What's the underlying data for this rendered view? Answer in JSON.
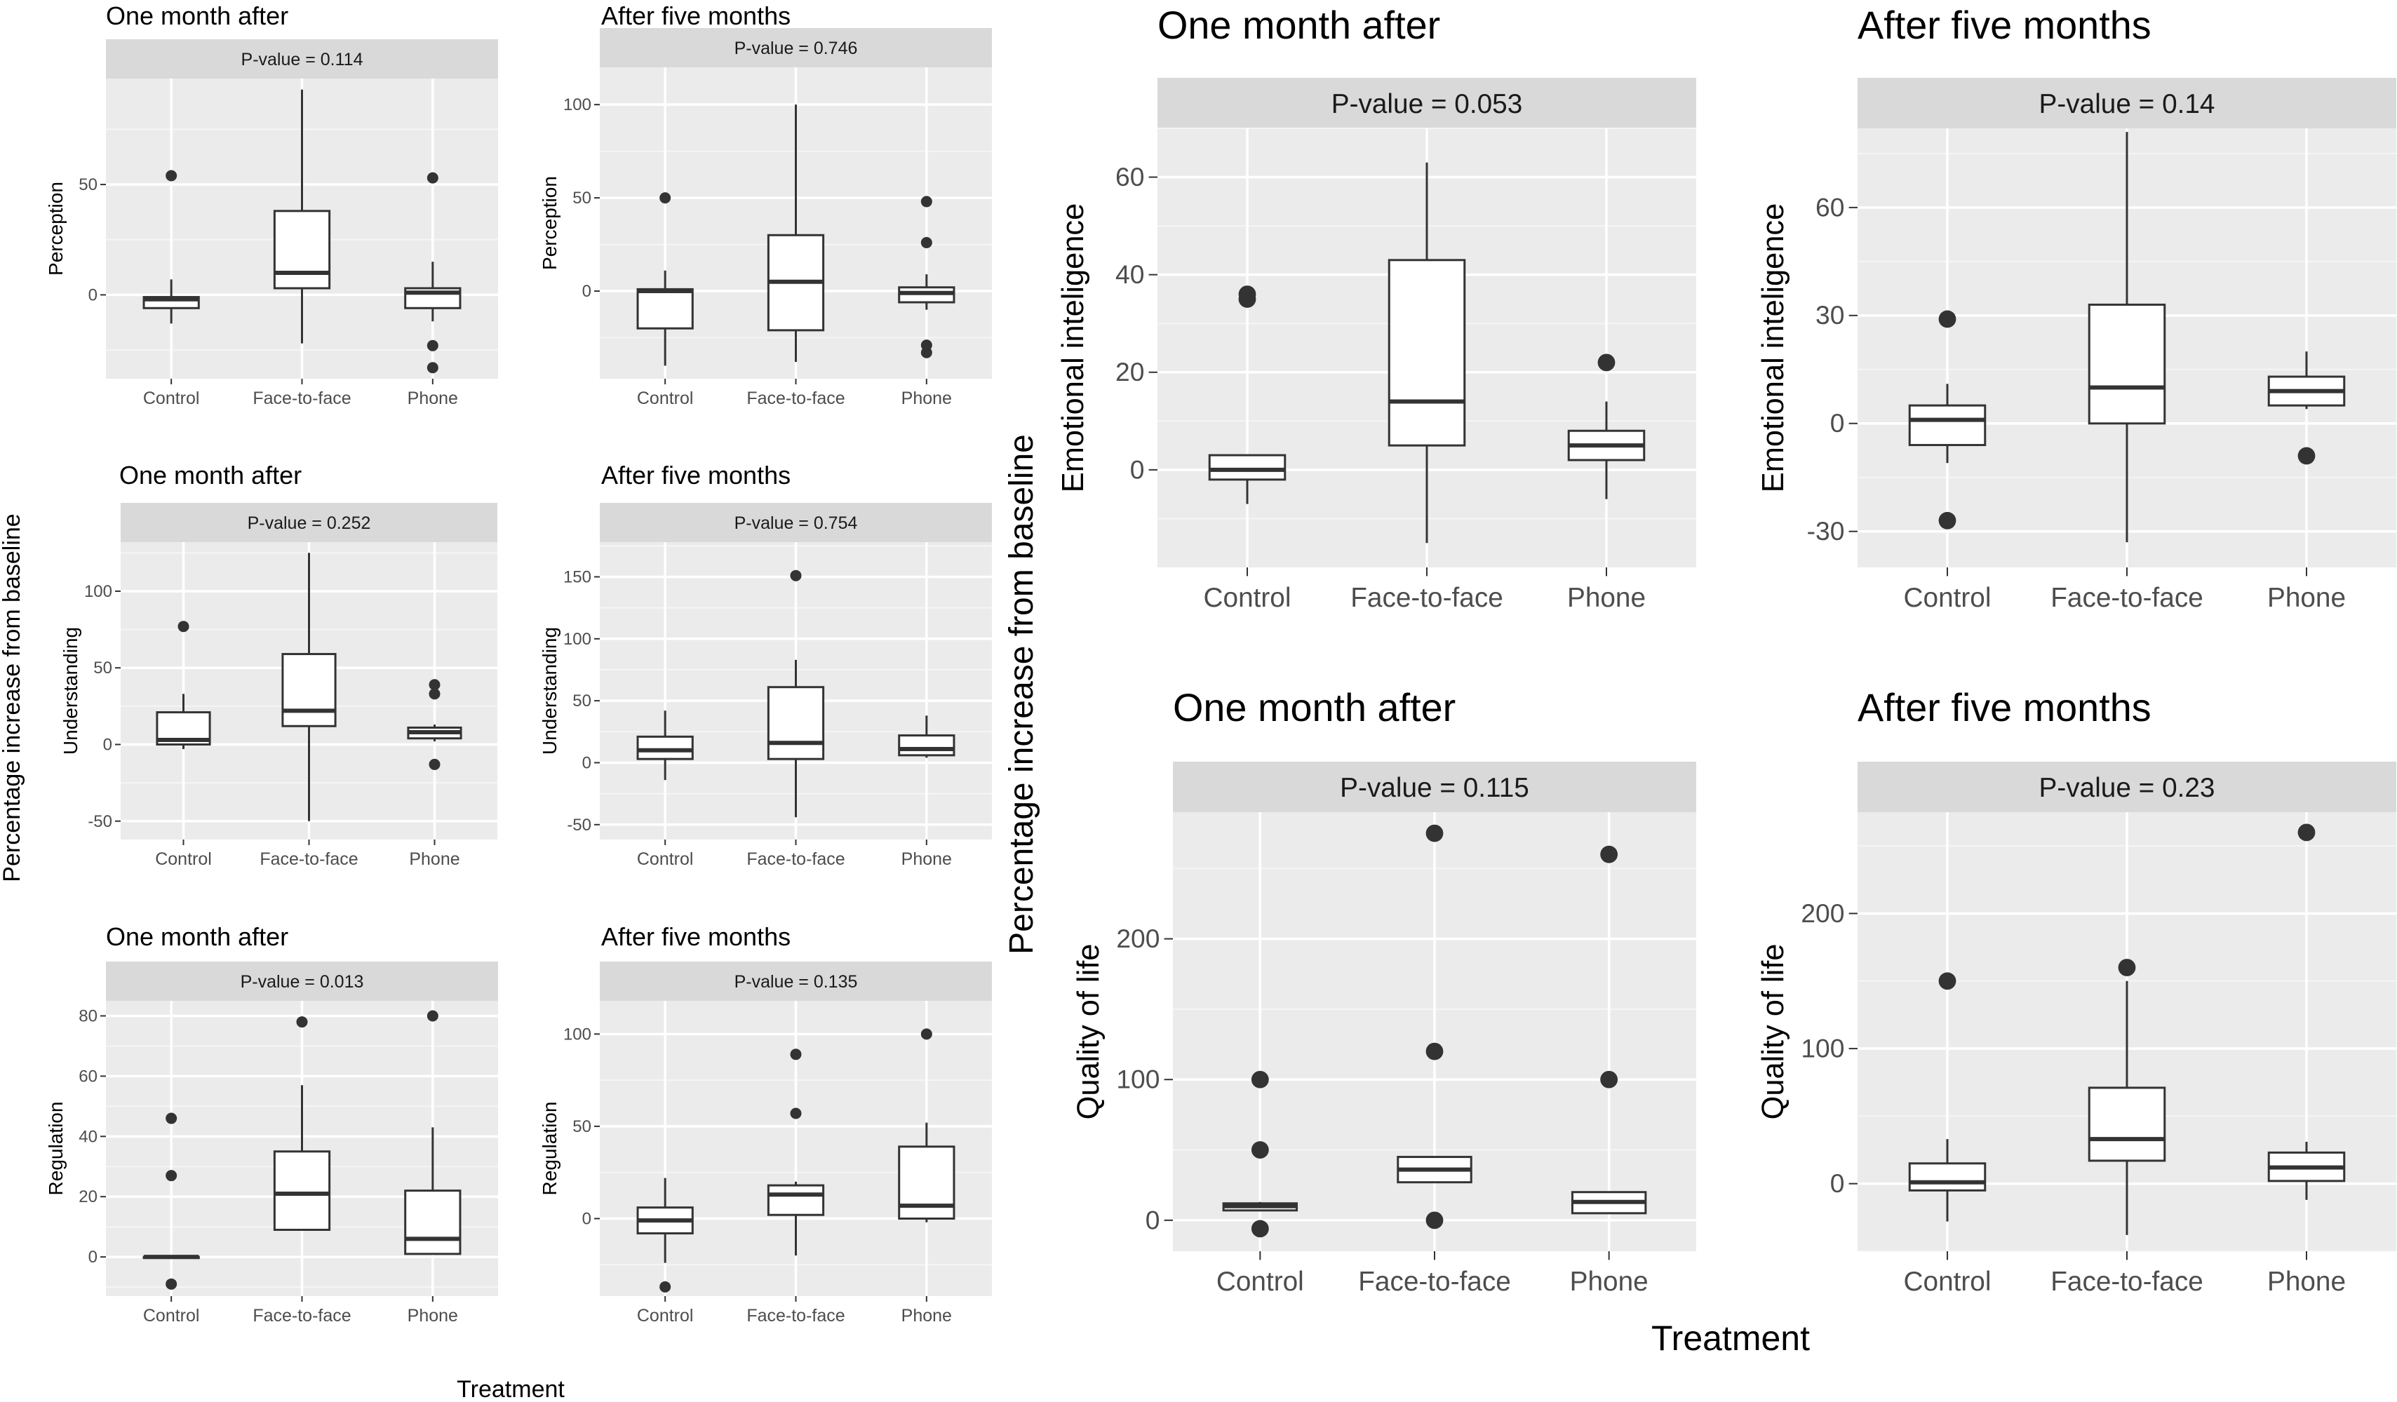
{
  "figure": {
    "shared_ylabel_left": "Percentage increase from baseline",
    "shared_ylabel_right": "Percentage increase from baseline",
    "shared_xlabel_left": "Treatment",
    "shared_xlabel_right": "Treatment"
  },
  "chart_data": [
    {
      "type": "box",
      "title": "One month after",
      "strip": "P-value =  0.114",
      "ylabel": "Perception",
      "xlabel": "",
      "ylim": [
        -38,
        98
      ],
      "yticks": [
        0,
        50
      ],
      "grid": true,
      "categories": [
        "Control",
        "Face-to-face",
        "Phone"
      ],
      "boxes": [
        {
          "category": "Control",
          "lower": -13,
          "q1": -6,
          "median": -2,
          "q3": -1,
          "upper": 7,
          "outliers": [
            54
          ]
        },
        {
          "category": "Face-to-face",
          "lower": -22,
          "q1": 3,
          "median": 10,
          "q3": 38,
          "upper": 93,
          "outliers": []
        },
        {
          "category": "Phone",
          "lower": -12,
          "q1": -6,
          "median": 1,
          "q3": 3,
          "upper": 15,
          "outliers": [
            53,
            -23,
            -33
          ]
        }
      ]
    },
    {
      "type": "box",
      "title": "After five months",
      "strip": "P-value =  0.746",
      "ylabel": "Perception",
      "xlabel": "",
      "ylim": [
        -47,
        120
      ],
      "yticks": [
        0,
        50,
        100
      ],
      "grid": true,
      "categories": [
        "Control",
        "Face-to-face",
        "Phone"
      ],
      "boxes": [
        {
          "category": "Control",
          "lower": -40,
          "q1": -20,
          "median": 0,
          "q3": 1,
          "upper": 11,
          "outliers": [
            50
          ]
        },
        {
          "category": "Face-to-face",
          "lower": -38,
          "q1": -21,
          "median": 5,
          "q3": 30,
          "upper": 100,
          "outliers": []
        },
        {
          "category": "Phone",
          "lower": -10,
          "q1": -6,
          "median": -1,
          "q3": 2,
          "upper": 9,
          "outliers": [
            48,
            26,
            -29,
            -33
          ]
        }
      ]
    },
    {
      "type": "box",
      "title": "One month after",
      "strip": "P-value =  0.252",
      "ylabel": "Understanding",
      "xlabel": "",
      "ylim": [
        -62,
        132
      ],
      "yticks": [
        -50,
        0,
        50,
        100
      ],
      "grid": true,
      "categories": [
        "Control",
        "Face-to-face",
        "Phone"
      ],
      "boxes": [
        {
          "category": "Control",
          "lower": -3,
          "q1": 0,
          "median": 3,
          "q3": 21,
          "upper": 33,
          "outliers": [
            77
          ]
        },
        {
          "category": "Face-to-face",
          "lower": -50,
          "q1": 12,
          "median": 22,
          "q3": 59,
          "upper": 125,
          "outliers": []
        },
        {
          "category": "Phone",
          "lower": 2,
          "q1": 4,
          "median": 8,
          "q3": 11,
          "upper": 13,
          "outliers": [
            39,
            33,
            -13
          ]
        }
      ]
    },
    {
      "type": "box",
      "title": "After five months",
      "strip": "P-value =  0.754",
      "ylabel": "Understanding",
      "xlabel": "",
      "ylim": [
        -62,
        178
      ],
      "yticks": [
        -50,
        0,
        50,
        100,
        150
      ],
      "grid": true,
      "categories": [
        "Control",
        "Face-to-face",
        "Phone"
      ],
      "boxes": [
        {
          "category": "Control",
          "lower": -14,
          "q1": 3,
          "median": 10,
          "q3": 21,
          "upper": 42,
          "outliers": []
        },
        {
          "category": "Face-to-face",
          "lower": -44,
          "q1": 3,
          "median": 16,
          "q3": 61,
          "upper": 83,
          "outliers": [
            151
          ]
        },
        {
          "category": "Phone",
          "lower": 4,
          "q1": 6,
          "median": 11,
          "q3": 22,
          "upper": 38,
          "outliers": []
        }
      ]
    },
    {
      "type": "box",
      "title": "One month after",
      "strip": "P-value =  0.013",
      "ylabel": "Regulation",
      "xlabel": "",
      "ylim": [
        -13,
        85
      ],
      "yticks": [
        0,
        20,
        40,
        60,
        80
      ],
      "grid": true,
      "categories": [
        "Control",
        "Face-to-face",
        "Phone"
      ],
      "boxes": [
        {
          "category": "Control",
          "lower": 0,
          "q1": 0,
          "median": 0,
          "q3": 0,
          "upper": 0,
          "outliers": [
            46,
            27,
            -9
          ]
        },
        {
          "category": "Face-to-face",
          "lower": 9,
          "q1": 9,
          "median": 21,
          "q3": 35,
          "upper": 57,
          "outliers": [
            78
          ]
        },
        {
          "category": "Phone",
          "lower": 1,
          "q1": 1,
          "median": 6,
          "q3": 22,
          "upper": 43,
          "outliers": [
            80
          ]
        }
      ]
    },
    {
      "type": "box",
      "title": "After five months",
      "strip": "P-value =  0.135",
      "ylabel": "Regulation",
      "xlabel": "",
      "ylim": [
        -42,
        118
      ],
      "yticks": [
        0,
        50,
        100
      ],
      "grid": true,
      "categories": [
        "Control",
        "Face-to-face",
        "Phone"
      ],
      "boxes": [
        {
          "category": "Control",
          "lower": -24,
          "q1": -8,
          "median": -1,
          "q3": 6,
          "upper": 22,
          "outliers": [
            -37
          ]
        },
        {
          "category": "Face-to-face",
          "lower": -20,
          "q1": 2,
          "median": 13,
          "q3": 18,
          "upper": 20,
          "outliers": [
            89,
            57
          ]
        },
        {
          "category": "Phone",
          "lower": -2,
          "q1": 0,
          "median": 7,
          "q3": 39,
          "upper": 52,
          "outliers": [
            100
          ]
        }
      ]
    },
    {
      "type": "box",
      "title": "One month after",
      "strip": "P-value =  0.053",
      "ylabel": "Emotional inteligence",
      "xlabel": "",
      "ylim": [
        -20,
        70
      ],
      "yticks": [
        0,
        20,
        40,
        60
      ],
      "grid": true,
      "categories": [
        "Control",
        "Face-to-face",
        "Phone"
      ],
      "boxes": [
        {
          "category": "Control",
          "lower": -7,
          "q1": -2,
          "median": 0,
          "q3": 3,
          "upper": 3,
          "outliers": [
            36,
            35
          ]
        },
        {
          "category": "Face-to-face",
          "lower": -15,
          "q1": 5,
          "median": 14,
          "q3": 43,
          "upper": 63,
          "outliers": []
        },
        {
          "category": "Phone",
          "lower": -6,
          "q1": 2,
          "median": 5,
          "q3": 8,
          "upper": 14,
          "outliers": [
            22
          ]
        }
      ]
    },
    {
      "type": "box",
      "title": "After five months",
      "strip": "P-value =  0.14",
      "ylabel": "Emotional inteligence",
      "xlabel": "",
      "ylim": [
        -40,
        82
      ],
      "yticks": [
        -30,
        0,
        30,
        60
      ],
      "grid": true,
      "categories": [
        "Control",
        "Face-to-face",
        "Phone"
      ],
      "boxes": [
        {
          "category": "Control",
          "lower": -11,
          "q1": -6,
          "median": 1,
          "q3": 5,
          "upper": 11,
          "outliers": [
            29,
            -27
          ]
        },
        {
          "category": "Face-to-face",
          "lower": -33,
          "q1": 0,
          "median": 10,
          "q3": 33,
          "upper": 81,
          "outliers": []
        },
        {
          "category": "Phone",
          "lower": 4,
          "q1": 5,
          "median": 9,
          "q3": 13,
          "upper": 20,
          "outliers": [
            -9
          ]
        }
      ]
    },
    {
      "type": "box",
      "title": "One month after",
      "strip": "P-value =  0.115",
      "ylabel": "Quality of life",
      "xlabel": "",
      "ylim": [
        -22,
        290
      ],
      "yticks": [
        0,
        100,
        200
      ],
      "grid": true,
      "categories": [
        "Control",
        "Face-to-face",
        "Phone"
      ],
      "boxes": [
        {
          "category": "Control",
          "lower": 7,
          "q1": 7,
          "median": 10,
          "q3": 12,
          "upper": 13,
          "outliers": [
            100,
            50,
            -6
          ]
        },
        {
          "category": "Face-to-face",
          "lower": 27,
          "q1": 27,
          "median": 36,
          "q3": 45,
          "upper": 45,
          "outliers": [
            275,
            120,
            0
          ]
        },
        {
          "category": "Phone",
          "lower": 5,
          "q1": 5,
          "median": 13,
          "q3": 20,
          "upper": 20,
          "outliers": [
            260,
            100
          ]
        }
      ]
    },
    {
      "type": "box",
      "title": "After five months",
      "strip": "P-value =  0.23",
      "ylabel": "Quality of life",
      "xlabel": "",
      "ylim": [
        -50,
        275
      ],
      "yticks": [
        0,
        100,
        200
      ],
      "grid": true,
      "categories": [
        "Control",
        "Face-to-face",
        "Phone"
      ],
      "boxes": [
        {
          "category": "Control",
          "lower": -28,
          "q1": -5,
          "median": 1,
          "q3": 15,
          "upper": 33,
          "outliers": [
            150
          ]
        },
        {
          "category": "Face-to-face",
          "lower": -38,
          "q1": 17,
          "median": 33,
          "q3": 71,
          "upper": 150,
          "outliers": [
            160
          ]
        },
        {
          "category": "Phone",
          "lower": -12,
          "q1": 2,
          "median": 12,
          "q3": 23,
          "upper": 31,
          "outliers": [
            260
          ]
        }
      ]
    }
  ]
}
